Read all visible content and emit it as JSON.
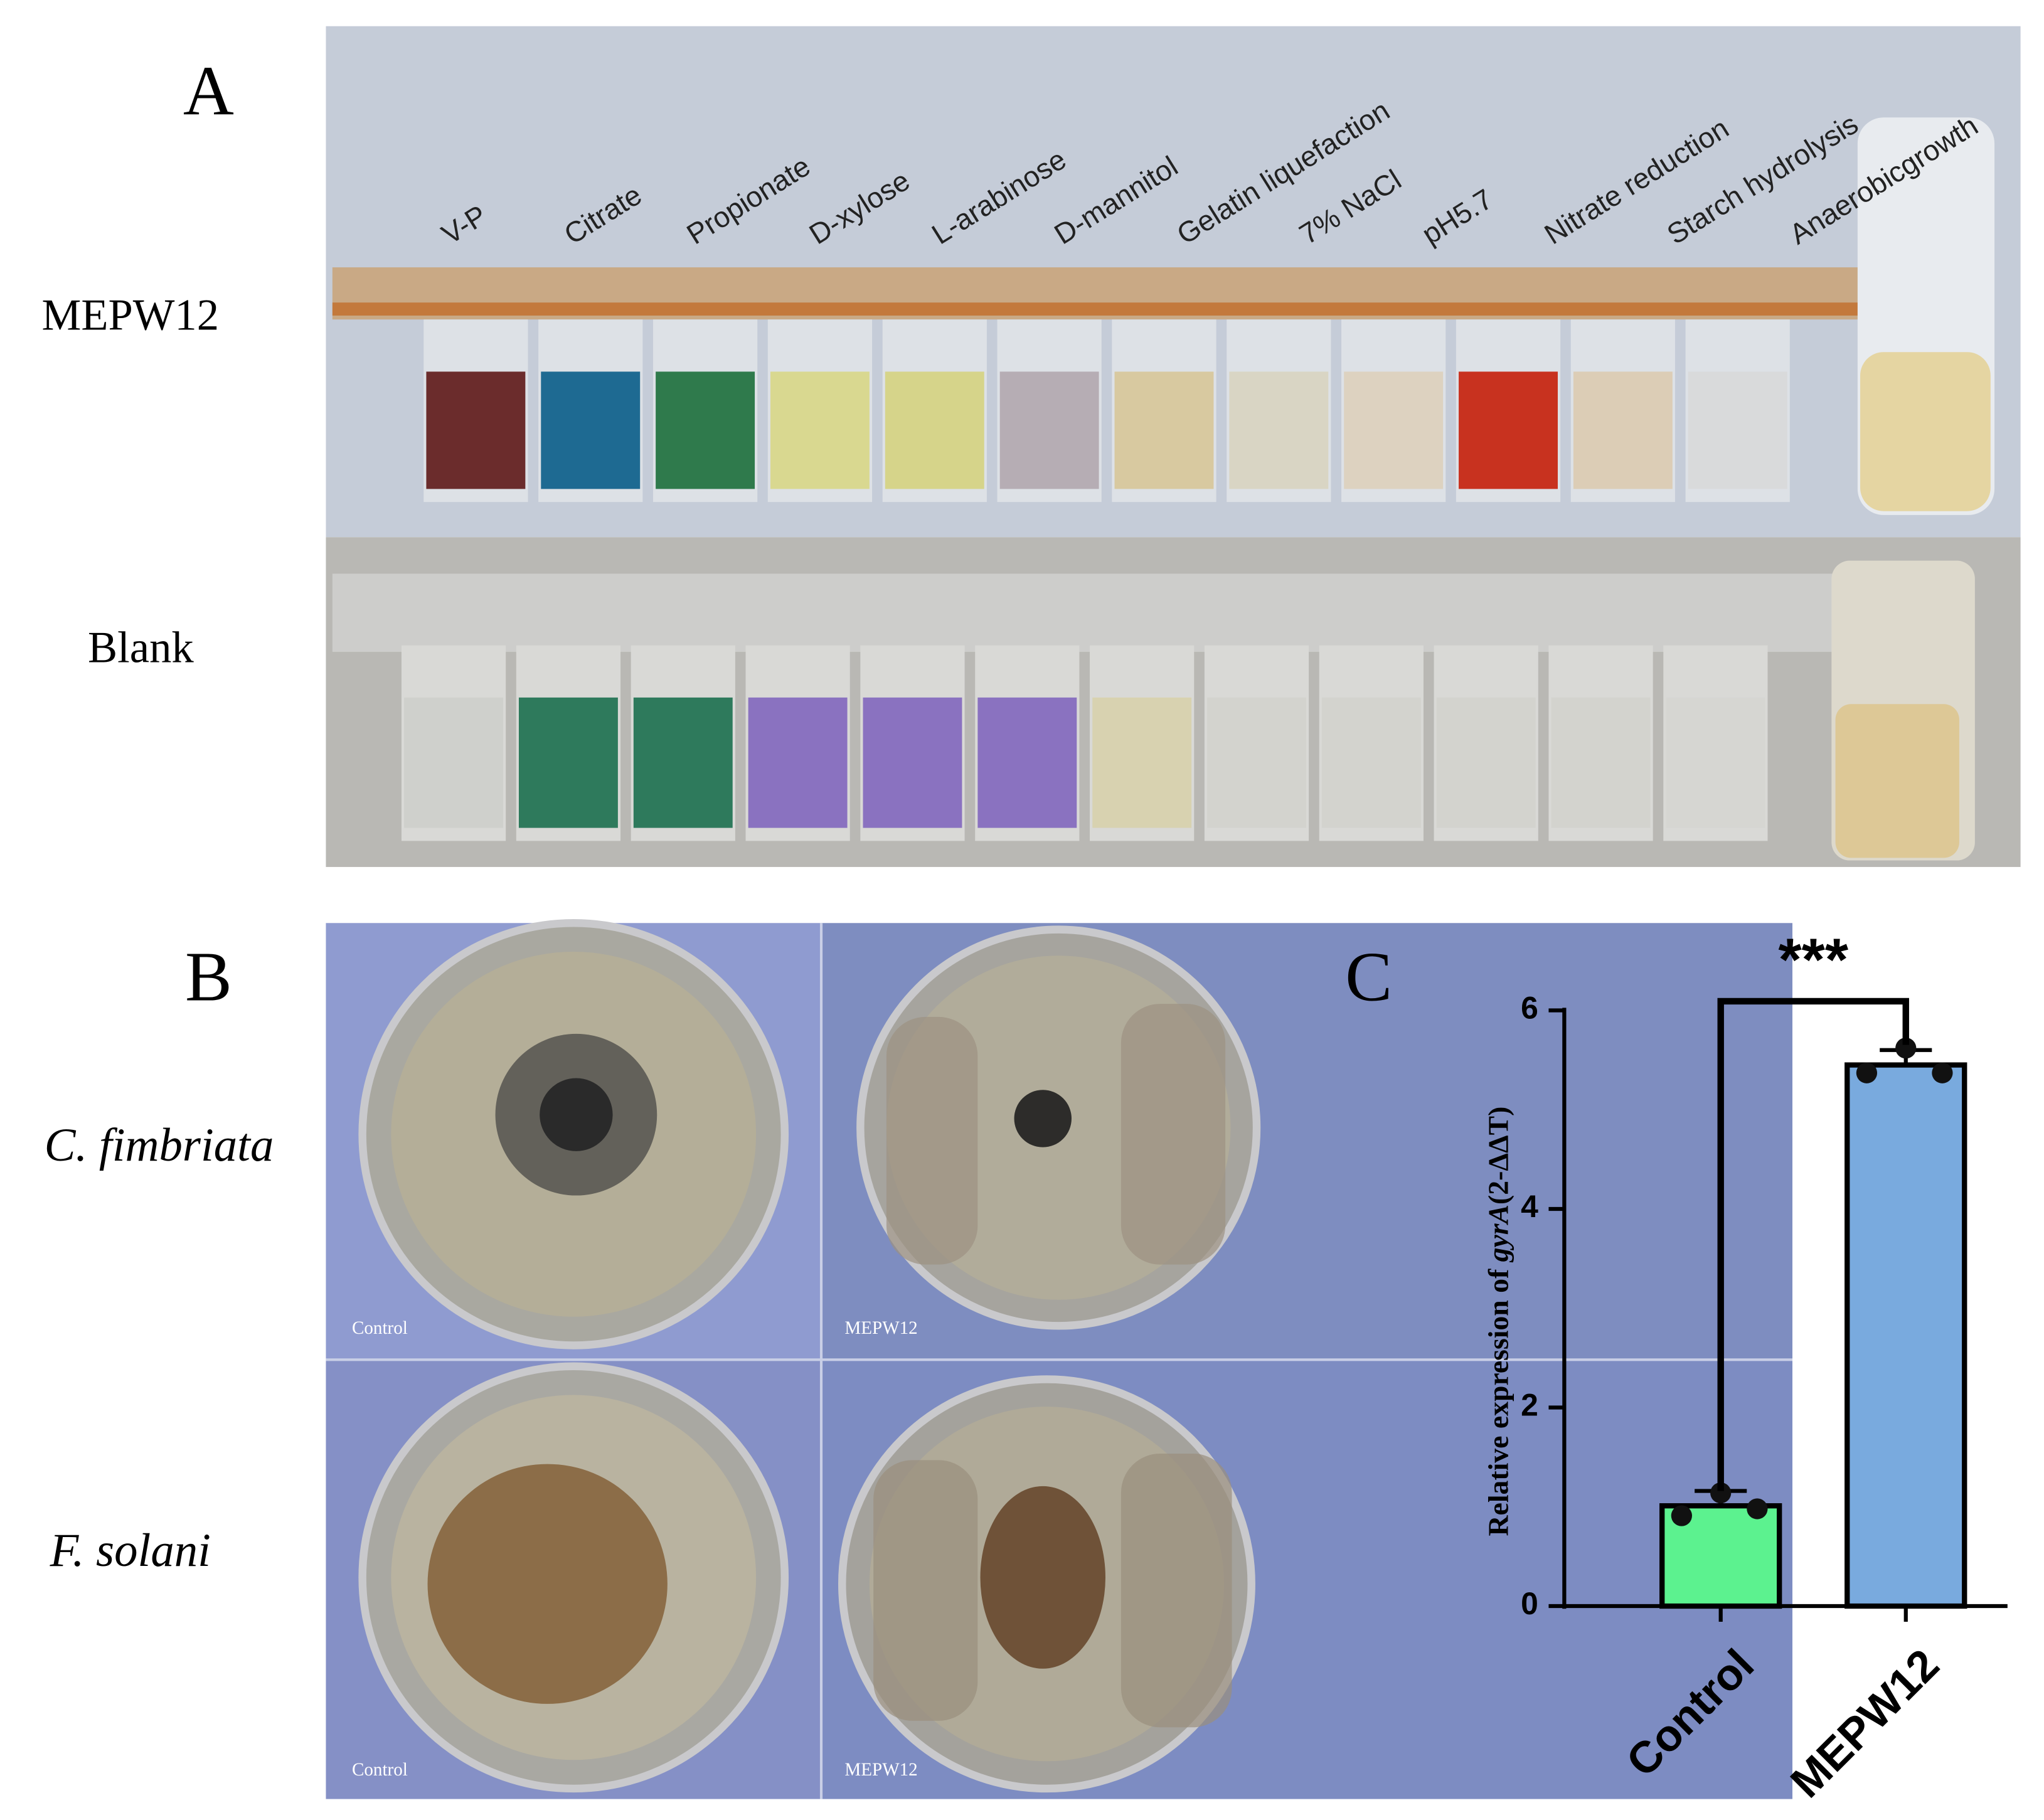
{
  "panel_a": {
    "letter": "A",
    "row_labels": [
      "MEPW12",
      "Blank"
    ],
    "tests": [
      "V-P",
      "Citrate",
      "Propionate",
      "D-xylose",
      "L-arabinose",
      "D-mannitol",
      "Gelatin liquefaction",
      "7% NaCl",
      "pH5.7",
      "Nitrate reduction",
      "Starch hydrolysis",
      "Anaerobicgrowth"
    ]
  },
  "panel_b": {
    "letter": "B",
    "row_labels": [
      "C. fimbriata",
      "F. solani"
    ],
    "image_labels": [
      [
        "Control",
        "MEPW12"
      ],
      [
        "Control",
        "MEPW12"
      ]
    ]
  },
  "chart_data": {
    "type": "bar",
    "panel_letter": "C",
    "categories": [
      "Control",
      "MEPW12"
    ],
    "values": [
      1.01,
      5.45
    ],
    "errors": [
      0.15,
      0.15
    ],
    "points": [
      [
        1.14,
        0.91,
        0.98
      ],
      [
        5.62,
        5.37,
        5.37
      ]
    ],
    "colors": [
      "#5cf28f",
      "#79aade"
    ],
    "y_label_parts": [
      "Relative expression of ",
      "gyrA",
      "(2-ΔΔT)"
    ],
    "significance": "***",
    "ylim": [
      0,
      6
    ],
    "yticks": [
      0,
      2,
      4,
      6
    ]
  }
}
